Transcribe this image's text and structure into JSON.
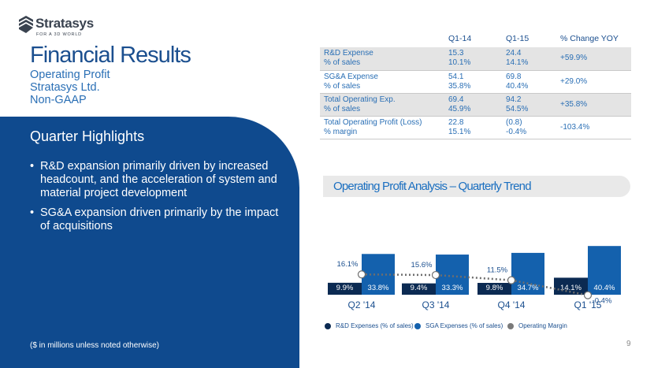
{
  "brand": {
    "name": "Stratasys",
    "tagline": "FOR A 3D WORLD",
    "mark_color": "#3a4350"
  },
  "header": {
    "title": "Financial Results",
    "subtitle_lines": [
      "Operating Profit",
      "Stratasys Ltd.",
      "Non-GAAP"
    ]
  },
  "highlights": {
    "title": "Quarter Highlights",
    "bullets": [
      "R&D expansion primarily driven by increased headcount, and the acceleration of system and material project development",
      "SG&A expansion driven primarily by the impact of acquisitions"
    ],
    "footnote": "($ in millions unless noted otherwise)"
  },
  "table": {
    "headers": [
      "",
      "Q1-14",
      "Q1-15",
      "% Change YOY"
    ],
    "rows": [
      {
        "label": "R&D Expense",
        "sublabel": "% of sales",
        "q1_14": "15.3",
        "q1_14_sub": "10.1%",
        "q1_15": "24.4",
        "q1_15_sub": "14.1%",
        "change": "+59.9%"
      },
      {
        "label": "SG&A Expense",
        "sublabel": "% of sales",
        "q1_14": "54.1",
        "q1_14_sub": "35.8%",
        "q1_15": "69.8",
        "q1_15_sub": "40.4%",
        "change": "+29.0%"
      },
      {
        "label": "Total Operating Exp.",
        "sublabel": "% of sales",
        "q1_14": "69.4",
        "q1_14_sub": "45.9%",
        "q1_15": "94.2",
        "q1_15_sub": "54.5%",
        "change": "+35.8%"
      },
      {
        "label": "Total Operating Profit (Loss)",
        "sublabel": "% margin",
        "q1_14": "22.8",
        "q1_14_sub": "15.1%",
        "q1_15": "(0.8)",
        "q1_15_sub": "-0.4%",
        "change": "-103.4%"
      }
    ]
  },
  "trend": {
    "title": "Operating Profit Analysis – Quarterly Trend"
  },
  "chart_data": {
    "type": "bar",
    "title": "Operating Profit Analysis – Quarterly Trend",
    "categories": [
      "Q2 '14",
      "Q3 '14",
      "Q4 '14",
      "Q1 '15"
    ],
    "series": [
      {
        "name": "R&D Expenses (% of sales)",
        "values": [
          9.9,
          9.4,
          9.8,
          14.1
        ],
        "labels": [
          "9.9%",
          "9.4%",
          "9.8%",
          "14.1%"
        ],
        "color": "#0b2a52"
      },
      {
        "name": "SGA Expenses (% of sales)",
        "values": [
          33.8,
          33.3,
          34.7,
          40.4
        ],
        "labels": [
          "33.8%",
          "33.3%",
          "34.7%",
          "40.4%"
        ],
        "color": "#1461ad"
      },
      {
        "name": "Operating Margin",
        "type": "line",
        "values": [
          16.1,
          15.6,
          11.5,
          -0.4
        ],
        "labels": [
          "16.1%",
          "15.6%",
          "11.5%",
          "-0.4%"
        ],
        "color": "#7a7a7a"
      }
    ],
    "legend_position": "bottom",
    "grid": false
  },
  "page_number": "9"
}
